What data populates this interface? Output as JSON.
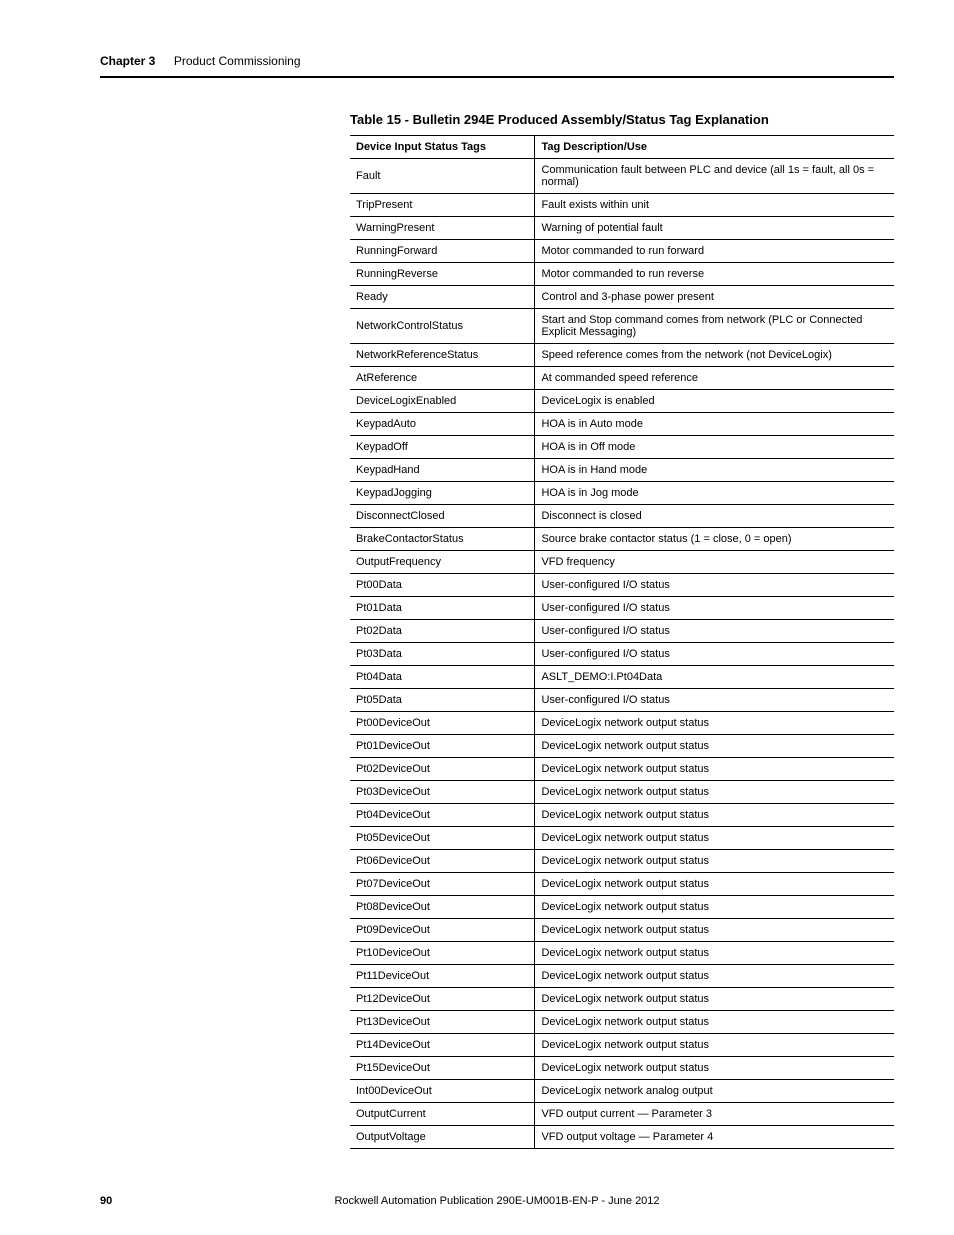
{
  "header": {
    "chapter_label": "Chapter 3",
    "chapter_title": "Product Commissioning"
  },
  "table": {
    "title": "Table 15 - Bulletin 294E Produced Assembly/Status Tag Explanation",
    "columns": [
      "Device Input Status Tags",
      "Tag Description/Use"
    ],
    "rows": [
      [
        "Fault",
        "Communication fault between PLC and device (all 1s = fault, all 0s = normal)"
      ],
      [
        "TripPresent",
        "Fault exists within unit"
      ],
      [
        "WarningPresent",
        "Warning of potential fault"
      ],
      [
        "RunningForward",
        "Motor commanded to run forward"
      ],
      [
        "RunningReverse",
        "Motor commanded to run reverse"
      ],
      [
        "Ready",
        "Control and 3-phase power present"
      ],
      [
        "NetworkControlStatus",
        "Start and Stop command comes from network (PLC or Connected Explicit Messaging)"
      ],
      [
        "NetworkReferenceStatus",
        "Speed reference comes from the network (not DeviceLogix)"
      ],
      [
        "AtReference",
        "At commanded speed reference"
      ],
      [
        "DeviceLogixEnabled",
        "DeviceLogix is enabled"
      ],
      [
        "KeypadAuto",
        "HOA is in Auto mode"
      ],
      [
        "KeypadOff",
        "HOA is in Off mode"
      ],
      [
        "KeypadHand",
        "HOA is in Hand mode"
      ],
      [
        "KeypadJogging",
        "HOA is in Jog mode"
      ],
      [
        "DisconnectClosed",
        "Disconnect is closed"
      ],
      [
        "BrakeContactorStatus",
        "Source brake contactor status (1 = close, 0 = open)"
      ],
      [
        "OutputFrequency",
        "VFD frequency"
      ],
      [
        "Pt00Data",
        "User-configured I/O status"
      ],
      [
        "Pt01Data",
        "User-configured I/O status"
      ],
      [
        "Pt02Data",
        "User-configured I/O status"
      ],
      [
        "Pt03Data",
        "User-configured I/O status"
      ],
      [
        "Pt04Data",
        "ASLT_DEMO:I.Pt04Data"
      ],
      [
        "Pt05Data",
        "User-configured I/O status"
      ],
      [
        "Pt00DeviceOut",
        "DeviceLogix network output status"
      ],
      [
        "Pt01DeviceOut",
        "DeviceLogix network output status"
      ],
      [
        "Pt02DeviceOut",
        "DeviceLogix network output status"
      ],
      [
        "Pt03DeviceOut",
        "DeviceLogix network output status"
      ],
      [
        "Pt04DeviceOut",
        "DeviceLogix network output status"
      ],
      [
        "Pt05DeviceOut",
        "DeviceLogix network output status"
      ],
      [
        "Pt06DeviceOut",
        "DeviceLogix network output status"
      ],
      [
        "Pt07DeviceOut",
        "DeviceLogix network output status"
      ],
      [
        "Pt08DeviceOut",
        "DeviceLogix network output status"
      ],
      [
        "Pt09DeviceOut",
        "DeviceLogix network output status"
      ],
      [
        "Pt10DeviceOut",
        "DeviceLogix network output status"
      ],
      [
        "Pt11DeviceOut",
        "DeviceLogix network output status"
      ],
      [
        "Pt12DeviceOut",
        "DeviceLogix network output status"
      ],
      [
        "Pt13DeviceOut",
        "DeviceLogix network output status"
      ],
      [
        "Pt14DeviceOut",
        "DeviceLogix network output status"
      ],
      [
        "Pt15DeviceOut",
        "DeviceLogix network output status"
      ],
      [
        "Int00DeviceOut",
        "DeviceLogix network analog output"
      ],
      [
        "OutputCurrent",
        "VFD output current — Parameter 3"
      ],
      [
        "OutputVoltage",
        "VFD output voltage — Parameter 4"
      ]
    ]
  },
  "footer": {
    "page_number": "90",
    "publication": "Rockwell Automation Publication 290E-UM001B-EN-P - June 2012"
  }
}
